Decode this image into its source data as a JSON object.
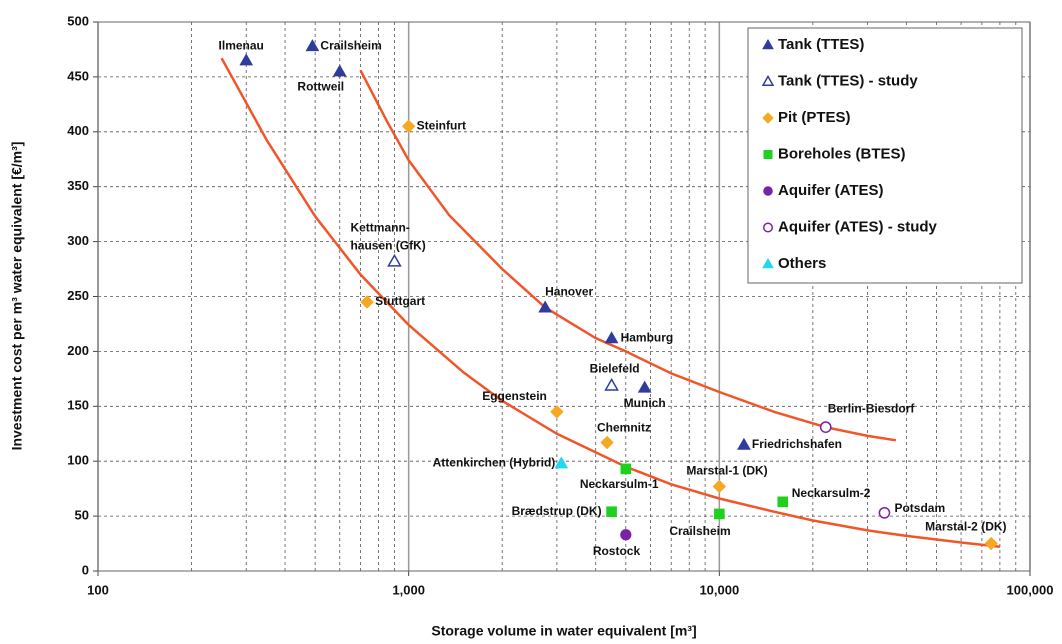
{
  "chart_data": {
    "type": "scatter",
    "x_label": "Storage volume in water equivalent [m³]",
    "y_label": "Investment cost per m³ water equivalent [€/m³]",
    "xscale": "log",
    "xlim": [
      100,
      100000
    ],
    "xticks": [
      100,
      {
        "value": 1000,
        "label": "1,000"
      },
      {
        "value": 10000,
        "label": "10,000"
      },
      {
        "value": 100000,
        "label": "100,000"
      }
    ],
    "xminorticks": [
      200,
      300,
      400,
      500,
      600,
      700,
      800,
      900,
      2000,
      3000,
      4000,
      5000,
      6000,
      7000,
      8000,
      9000,
      20000,
      30000,
      40000,
      50000,
      60000,
      70000,
      80000,
      90000
    ],
    "ylim": [
      0,
      500
    ],
    "yticks": [
      0,
      50,
      100,
      150,
      200,
      250,
      300,
      350,
      400,
      450,
      500
    ],
    "grid": true,
    "legend": "top-right",
    "series": [
      {
        "name": "Tank (TTES)",
        "color": "#2f3c9e",
        "marker": "triangle",
        "filled": true,
        "x": [
          300,
          490,
          600,
          2750,
          4500,
          5750,
          12000
        ],
        "values": [
          465,
          478,
          455,
          240,
          212,
          167,
          115
        ],
        "labels": [
          "Ilmenau",
          "Crailsheim",
          "Rottweil",
          "Hanover",
          "Hamburg",
          "Munich",
          "Friedrichshafen"
        ]
      },
      {
        "name": "Tank (TTES) - study",
        "color": "#2f3c9e",
        "marker": "triangle",
        "filled": false,
        "x": [
          900,
          4500
        ],
        "values": [
          282,
          169
        ],
        "labels": [
          [
            "Kettmann-",
            "hausen (GfK)"
          ],
          "Bielefeld"
        ]
      },
      {
        "name": "Pit (PTES)",
        "color": "#f7a823",
        "marker": "diamond",
        "filled": true,
        "x": [
          1000,
          735,
          3000,
          4350,
          10000,
          75000
        ],
        "values": [
          405,
          245,
          145,
          117,
          77,
          25
        ],
        "labels": [
          "Steinfurt",
          "Stuttgart",
          "Eggenstein",
          "Chemnitz",
          "Marstal-1 (DK)",
          "Marstal-2 (DK)"
        ]
      },
      {
        "name": "Boreholes (BTES)",
        "color": "#1fd11f",
        "marker": "square",
        "filled": true,
        "x": [
          5000,
          4500,
          10000,
          16000
        ],
        "values": [
          93,
          54,
          52,
          63
        ],
        "labels": [
          "Neckarsulm-1",
          "Brædstrup (DK)",
          "Crailsheim",
          "Neckarsulm-2"
        ]
      },
      {
        "name": "Aquifer (ATES)",
        "color": "#7b22a8",
        "marker": "circle",
        "filled": true,
        "x": [
          5000
        ],
        "values": [
          33
        ],
        "labels": [
          "Rostock"
        ]
      },
      {
        "name": "Aquifer (ATES) - study",
        "color": "#7b22a8",
        "marker": "circle",
        "filled": false,
        "x": [
          22000,
          34000
        ],
        "values": [
          131,
          53
        ],
        "labels": [
          "Berlin-Biesdorf",
          "Potsdam"
        ]
      },
      {
        "name": "Others",
        "color": "#22d8f0",
        "marker": "triangle",
        "filled": true,
        "x": [
          3100
        ],
        "values": [
          98
        ],
        "labels": [
          "Attenkirchen (Hybrid)"
        ]
      }
    ],
    "curves": [
      {
        "color": "#f0562a",
        "x": [
          250,
          350,
          500,
          700,
          1000,
          1500,
          2000,
          3000,
          5000,
          7000,
          10000,
          15000,
          20000,
          30000,
          40000,
          60000,
          80000
        ],
        "values": [
          467,
          392,
          323,
          270,
          224,
          181,
          155,
          125,
          95,
          79,
          66,
          54,
          46,
          37,
          32,
          26,
          22
        ]
      },
      {
        "color": "#f0562a",
        "x": [
          700,
          850,
          1000,
          1350,
          2000,
          2750,
          4000,
          5000,
          7000,
          10000,
          15000,
          22000,
          30000,
          37000
        ],
        "values": [
          456,
          410,
          374,
          324,
          275,
          240,
          212,
          200,
          180,
          163,
          145,
          131,
          123,
          119
        ]
      }
    ]
  }
}
